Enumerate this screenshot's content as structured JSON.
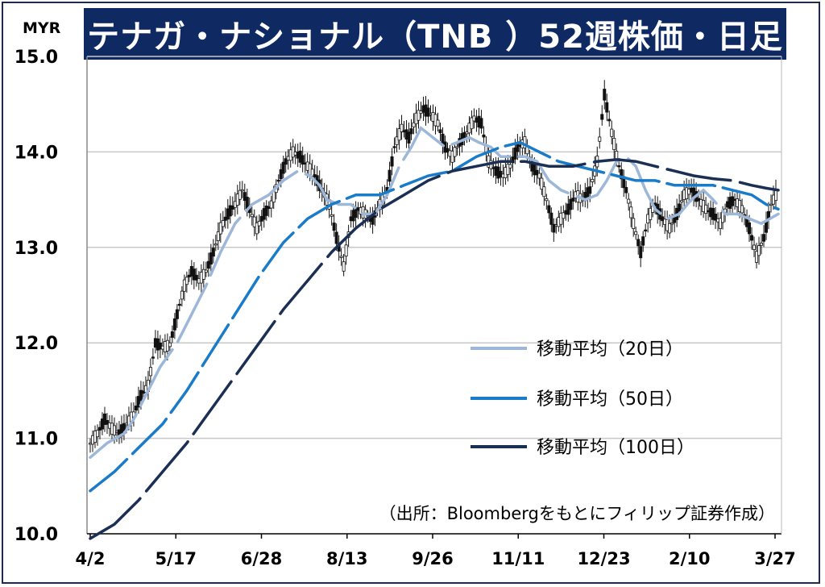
{
  "title": "テナガ・ナショナル（TNB ）52週株価・日足",
  "source": "（出所：Bloombergをもとにフィリップ証券作成）",
  "chart_data": {
    "type": "line",
    "unit": "MYR",
    "ylim": [
      10.0,
      15.0
    ],
    "y_ticks": [
      "10.0",
      "11.0",
      "12.0",
      "13.0",
      "14.0",
      "15.0"
    ],
    "x_ticks": [
      "4/2",
      "5/17",
      "6/28",
      "8/13",
      "9/26",
      "11/11",
      "12/23",
      "2/10",
      "3/27"
    ],
    "grid": true,
    "legend_position": "center-right",
    "price_close": [
      [
        0,
        10.95
      ],
      [
        6,
        11.05
      ],
      [
        12,
        11.2
      ],
      [
        18,
        11.1
      ],
      [
        24,
        11.05
      ],
      [
        30,
        11.15
      ],
      [
        36,
        11.25
      ],
      [
        42,
        11.45
      ],
      [
        48,
        11.55
      ],
      [
        54,
        12.0
      ],
      [
        60,
        11.95
      ],
      [
        66,
        11.98
      ],
      [
        72,
        12.3
      ],
      [
        78,
        12.6
      ],
      [
        84,
        12.75
      ],
      [
        90,
        12.65
      ],
      [
        96,
        12.75
      ],
      [
        102,
        12.95
      ],
      [
        108,
        13.2
      ],
      [
        114,
        13.35
      ],
      [
        120,
        13.45
      ],
      [
        126,
        13.6
      ],
      [
        132,
        13.4
      ],
      [
        138,
        13.2
      ],
      [
        144,
        13.35
      ],
      [
        150,
        13.45
      ],
      [
        156,
        13.7
      ],
      [
        162,
        13.9
      ],
      [
        168,
        14.0
      ],
      [
        174,
        13.95
      ],
      [
        180,
        13.85
      ],
      [
        186,
        13.75
      ],
      [
        192,
        13.6
      ],
      [
        198,
        13.45
      ],
      [
        204,
        13.1
      ],
      [
        210,
        12.8
      ],
      [
        216,
        13.3
      ],
      [
        222,
        13.4
      ],
      [
        228,
        13.35
      ],
      [
        234,
        13.3
      ],
      [
        240,
        13.45
      ],
      [
        246,
        13.6
      ],
      [
        252,
        14.05
      ],
      [
        258,
        14.25
      ],
      [
        264,
        14.15
      ],
      [
        270,
        14.35
      ],
      [
        276,
        14.45
      ],
      [
        282,
        14.4
      ],
      [
        288,
        14.3
      ],
      [
        294,
        14.05
      ],
      [
        300,
        13.95
      ],
      [
        306,
        14.1
      ],
      [
        312,
        14.2
      ],
      [
        318,
        14.35
      ],
      [
        324,
        14.3
      ],
      [
        330,
        13.9
      ],
      [
        336,
        13.8
      ],
      [
        342,
        13.75
      ],
      [
        348,
        13.85
      ],
      [
        354,
        14.05
      ],
      [
        360,
        14.1
      ],
      [
        366,
        13.85
      ],
      [
        372,
        13.75
      ],
      [
        378,
        13.5
      ],
      [
        384,
        13.2
      ],
      [
        390,
        13.3
      ],
      [
        396,
        13.4
      ],
      [
        402,
        13.55
      ],
      [
        408,
        13.5
      ],
      [
        414,
        13.6
      ],
      [
        420,
        13.9
      ],
      [
        426,
        14.6
      ],
      [
        432,
        14.2
      ],
      [
        438,
        13.85
      ],
      [
        444,
        13.6
      ],
      [
        450,
        13.25
      ],
      [
        456,
        12.95
      ],
      [
        462,
        13.3
      ],
      [
        468,
        13.45
      ],
      [
        474,
        13.3
      ],
      [
        480,
        13.2
      ],
      [
        486,
        13.35
      ],
      [
        492,
        13.55
      ],
      [
        498,
        13.6
      ],
      [
        504,
        13.5
      ],
      [
        510,
        13.4
      ],
      [
        516,
        13.35
      ],
      [
        522,
        13.25
      ],
      [
        528,
        13.45
      ],
      [
        534,
        13.5
      ],
      [
        540,
        13.4
      ],
      [
        546,
        13.2
      ],
      [
        552,
        12.9
      ],
      [
        558,
        13.1
      ],
      [
        564,
        13.45
      ],
      [
        570,
        13.6
      ]
    ],
    "series": [
      {
        "name": "移動平均（20日）",
        "color": "#9db7d9",
        "values": [
          [
            0,
            10.8
          ],
          [
            14,
            10.95
          ],
          [
            28,
            11.05
          ],
          [
            36,
            11.2
          ],
          [
            46,
            11.45
          ],
          [
            58,
            11.75
          ],
          [
            72,
            12.0
          ],
          [
            84,
            12.3
          ],
          [
            96,
            12.6
          ],
          [
            108,
            12.95
          ],
          [
            120,
            13.25
          ],
          [
            134,
            13.45
          ],
          [
            148,
            13.55
          ],
          [
            160,
            13.7
          ],
          [
            172,
            13.8
          ],
          [
            182,
            13.75
          ],
          [
            190,
            13.65
          ],
          [
            196,
            13.5
          ],
          [
            206,
            13.45
          ],
          [
            216,
            13.45
          ],
          [
            226,
            13.35
          ],
          [
            236,
            13.35
          ],
          [
            246,
            13.55
          ],
          [
            256,
            13.85
          ],
          [
            266,
            14.05
          ],
          [
            274,
            14.25
          ],
          [
            284,
            14.15
          ],
          [
            294,
            14.05
          ],
          [
            304,
            14.1
          ],
          [
            314,
            14.15
          ],
          [
            322,
            14.1
          ],
          [
            332,
            14.05
          ],
          [
            340,
            13.95
          ],
          [
            350,
            13.95
          ],
          [
            360,
            13.95
          ],
          [
            370,
            13.9
          ],
          [
            380,
            13.7
          ],
          [
            390,
            13.6
          ],
          [
            400,
            13.55
          ],
          [
            410,
            13.5
          ],
          [
            420,
            13.55
          ],
          [
            428,
            13.7
          ],
          [
            436,
            13.9
          ],
          [
            444,
            13.95
          ],
          [
            452,
            13.85
          ],
          [
            460,
            13.6
          ],
          [
            468,
            13.4
          ],
          [
            478,
            13.3
          ],
          [
            488,
            13.35
          ],
          [
            498,
            13.5
          ],
          [
            508,
            13.6
          ],
          [
            516,
            13.5
          ],
          [
            526,
            13.35
          ],
          [
            536,
            13.35
          ],
          [
            546,
            13.3
          ],
          [
            556,
            13.25
          ],
          [
            570,
            13.35
          ]
        ]
      },
      {
        "name": "移動平均（50日）",
        "color": "#1a7bc8",
        "values": [
          [
            0,
            10.45
          ],
          [
            20,
            10.65
          ],
          [
            40,
            10.9
          ],
          [
            60,
            11.15
          ],
          [
            80,
            11.5
          ],
          [
            100,
            11.9
          ],
          [
            120,
            12.3
          ],
          [
            140,
            12.7
          ],
          [
            160,
            13.05
          ],
          [
            180,
            13.3
          ],
          [
            200,
            13.45
          ],
          [
            220,
            13.55
          ],
          [
            240,
            13.55
          ],
          [
            260,
            13.65
          ],
          [
            280,
            13.75
          ],
          [
            300,
            13.8
          ],
          [
            320,
            13.95
          ],
          [
            340,
            14.05
          ],
          [
            356,
            14.1
          ],
          [
            372,
            14.0
          ],
          [
            388,
            13.9
          ],
          [
            404,
            13.85
          ],
          [
            420,
            13.8
          ],
          [
            436,
            13.75
          ],
          [
            452,
            13.7
          ],
          [
            468,
            13.7
          ],
          [
            484,
            13.65
          ],
          [
            500,
            13.65
          ],
          [
            516,
            13.65
          ],
          [
            532,
            13.6
          ],
          [
            548,
            13.55
          ],
          [
            560,
            13.45
          ],
          [
            570,
            13.4
          ]
        ]
      },
      {
        "name": "移動平均（100日）",
        "color": "#1b2f55",
        "values": [
          [
            0,
            9.95
          ],
          [
            20,
            10.1
          ],
          [
            40,
            10.35
          ],
          [
            60,
            10.65
          ],
          [
            80,
            10.95
          ],
          [
            100,
            11.3
          ],
          [
            120,
            11.65
          ],
          [
            140,
            12.0
          ],
          [
            160,
            12.35
          ],
          [
            180,
            12.65
          ],
          [
            200,
            12.95
          ],
          [
            220,
            13.2
          ],
          [
            240,
            13.4
          ],
          [
            260,
            13.55
          ],
          [
            280,
            13.7
          ],
          [
            300,
            13.8
          ],
          [
            320,
            13.85
          ],
          [
            340,
            13.9
          ],
          [
            360,
            13.9
          ],
          [
            380,
            13.85
          ],
          [
            400,
            13.85
          ],
          [
            420,
            13.9
          ],
          [
            436,
            13.92
          ],
          [
            452,
            13.9
          ],
          [
            468,
            13.85
          ],
          [
            484,
            13.8
          ],
          [
            500,
            13.75
          ],
          [
            516,
            13.72
          ],
          [
            532,
            13.7
          ],
          [
            548,
            13.65
          ],
          [
            560,
            13.62
          ],
          [
            570,
            13.6
          ]
        ]
      }
    ]
  }
}
